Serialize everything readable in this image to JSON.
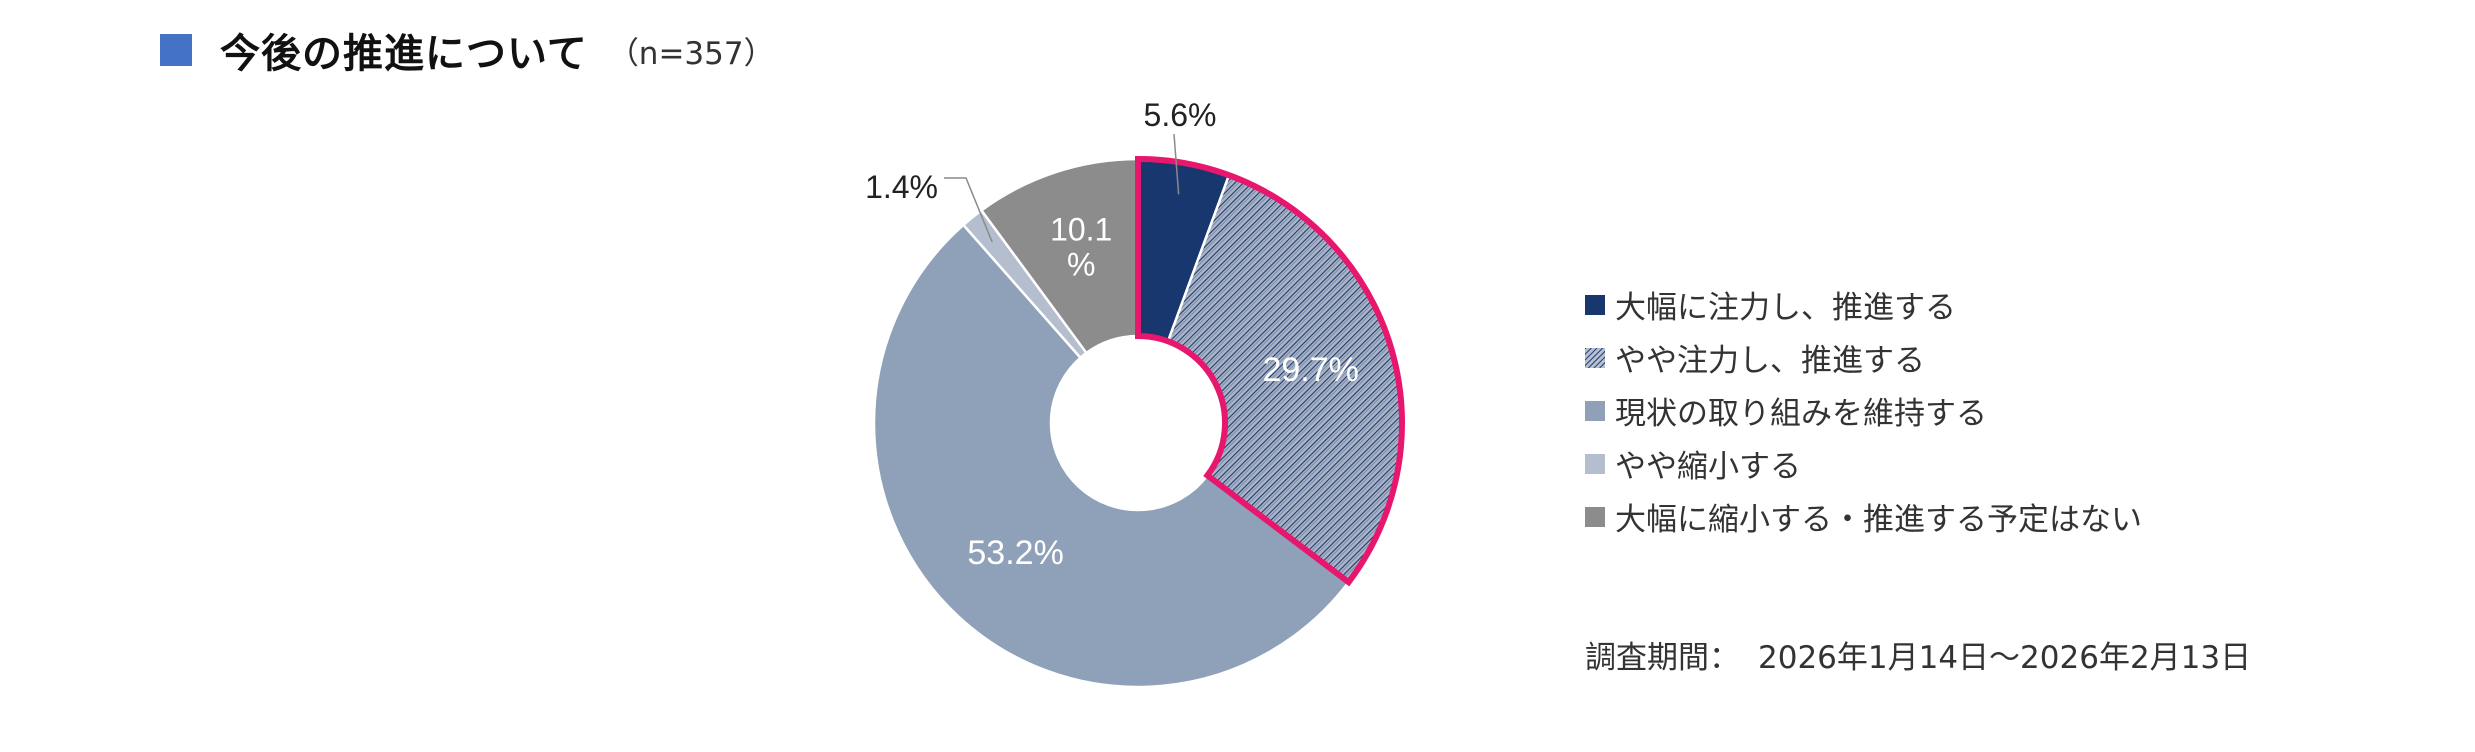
{
  "title": {
    "text": "今後の推進について",
    "n_label": "（n=357）",
    "square_color": "#4472C4"
  },
  "chart_data": {
    "type": "donut",
    "title": "今後の推進について",
    "n": 357,
    "categories": [
      "大幅に注力し、推進する",
      "やや注力し、推進する",
      "現状の取り組みを維持する",
      "やや縮小する",
      "大幅に縮小する・推進する予定はない"
    ],
    "values": [
      5.6,
      29.7,
      53.2,
      1.4,
      10.1
    ],
    "data_labels": [
      "5.6%",
      "29.7%",
      "53.2%",
      "1.4%",
      "10.1\n%"
    ],
    "colors": [
      "#17376E",
      "#8C9CB6",
      "#8FA0B9",
      "#B5BECF",
      "#8C8C8C"
    ],
    "patterns": [
      "solid",
      "crosshatch",
      "solid",
      "solid",
      "solid"
    ],
    "highlight": {
      "categories": [
        "大幅に注力し、推進する",
        "やや注力し、推進する"
      ],
      "outline_color": "#E8176E"
    },
    "legend_position": "right",
    "unit": "%"
  },
  "footer": {
    "period_label": "調査期間：",
    "period_value": "2026年1月14日～2026年2月13日"
  }
}
